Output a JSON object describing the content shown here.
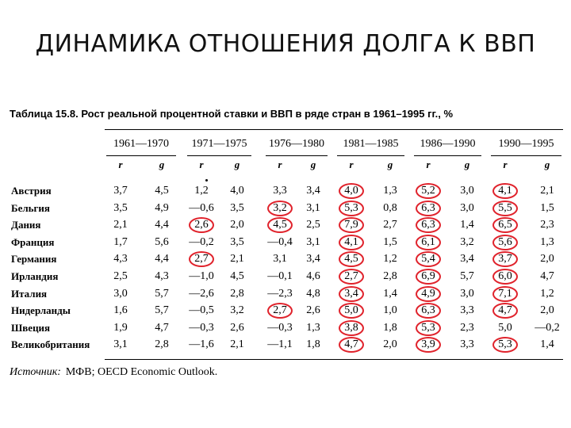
{
  "slide": {
    "title": "ДИНАМИКА ОТНОШЕНИЯ ДОЛГА К ВВП"
  },
  "table": {
    "caption": "Таблица 15.8. Рост реальной процентной ставки и ВВП в ряде стран в 1961–1995 гг., %",
    "periods": [
      "1961—1970",
      "1971—1975",
      "1976—1980",
      "1981—1985",
      "1986—1990",
      "1990—1995"
    ],
    "sub_headers": [
      "r",
      "g"
    ],
    "highlight_color": "#e0232c",
    "rows": [
      {
        "country": "Австрия",
        "values": [
          "3,7",
          "4,5",
          "1,2",
          "4,0",
          "3,3",
          "3,4",
          "4,0",
          "1,3",
          "5,2",
          "3,0",
          "4,1",
          "2,1"
        ],
        "circled": [
          6,
          8,
          10
        ]
      },
      {
        "country": "Бельгия",
        "values": [
          "3,5",
          "4,9",
          "—0,6",
          "3,5",
          "3,2",
          "3,1",
          "5,3",
          "0,8",
          "6,3",
          "3,0",
          "5,5",
          "1,5"
        ],
        "circled": [
          4,
          6,
          8,
          10
        ]
      },
      {
        "country": "Дания",
        "values": [
          "2,1",
          "4,4",
          "2,6",
          "2,0",
          "4,5",
          "2,5",
          "7,9",
          "2,7",
          "6,3",
          "1,4",
          "6,5",
          "2,3"
        ],
        "circled": [
          2,
          4,
          6,
          8,
          10
        ]
      },
      {
        "country": "Франция",
        "values": [
          "1,7",
          "5,6",
          "—0,2",
          "3,5",
          "—0,4",
          "3,1",
          "4,1",
          "1,5",
          "6,1",
          "3,2",
          "5,6",
          "1,3"
        ],
        "circled": [
          6,
          8,
          10
        ]
      },
      {
        "country": "Германия",
        "values": [
          "4,3",
          "4,4",
          "2,7",
          "2,1",
          "3,1",
          "3,4",
          "4,5",
          "1,2",
          "5,4",
          "3,4",
          "3,7",
          "2,0"
        ],
        "circled": [
          2,
          6,
          8,
          10
        ]
      },
      {
        "country": "Ирландия",
        "values": [
          "2,5",
          "4,3",
          "—1,0",
          "4,5",
          "—0,1",
          "4,6",
          "2,7",
          "2,8",
          "6,9",
          "5,7",
          "6,0",
          "4,7"
        ],
        "circled": [
          6,
          8,
          10
        ]
      },
      {
        "country": "Италия",
        "values": [
          "3,0",
          "5,7",
          "—2,6",
          "2,8",
          "—2,3",
          "4,8",
          "3,4",
          "1,4",
          "4,9",
          "3,0",
          "7,1",
          "1,2"
        ],
        "circled": [
          6,
          8,
          10
        ]
      },
      {
        "country": "Нидерланды",
        "values": [
          "1,6",
          "5,7",
          "—0,5",
          "3,2",
          "2,7",
          "2,6",
          "5,0",
          "1,0",
          "6,3",
          "3,3",
          "4,7",
          "2,0"
        ],
        "circled": [
          4,
          6,
          8,
          10
        ]
      },
      {
        "country": "Швеция",
        "values": [
          "1,9",
          "4,7",
          "—0,3",
          "2,6",
          "—0,3",
          "1,3",
          "3,8",
          "1,8",
          "5,3",
          "2,3",
          "5,0",
          "—0,2"
        ],
        "circled": [
          6,
          8
        ]
      },
      {
        "country": "Великобритания",
        "values": [
          "3,1",
          "2,8",
          "—1,6",
          "2,1",
          "—1,1",
          "1,8",
          "4,7",
          "2,0",
          "3,9",
          "3,3",
          "5,3",
          "1,4"
        ],
        "circled": [
          6,
          8,
          10
        ]
      }
    ],
    "source_label": "Источник:",
    "source_text": "МФВ; OECD Economic Outlook."
  }
}
